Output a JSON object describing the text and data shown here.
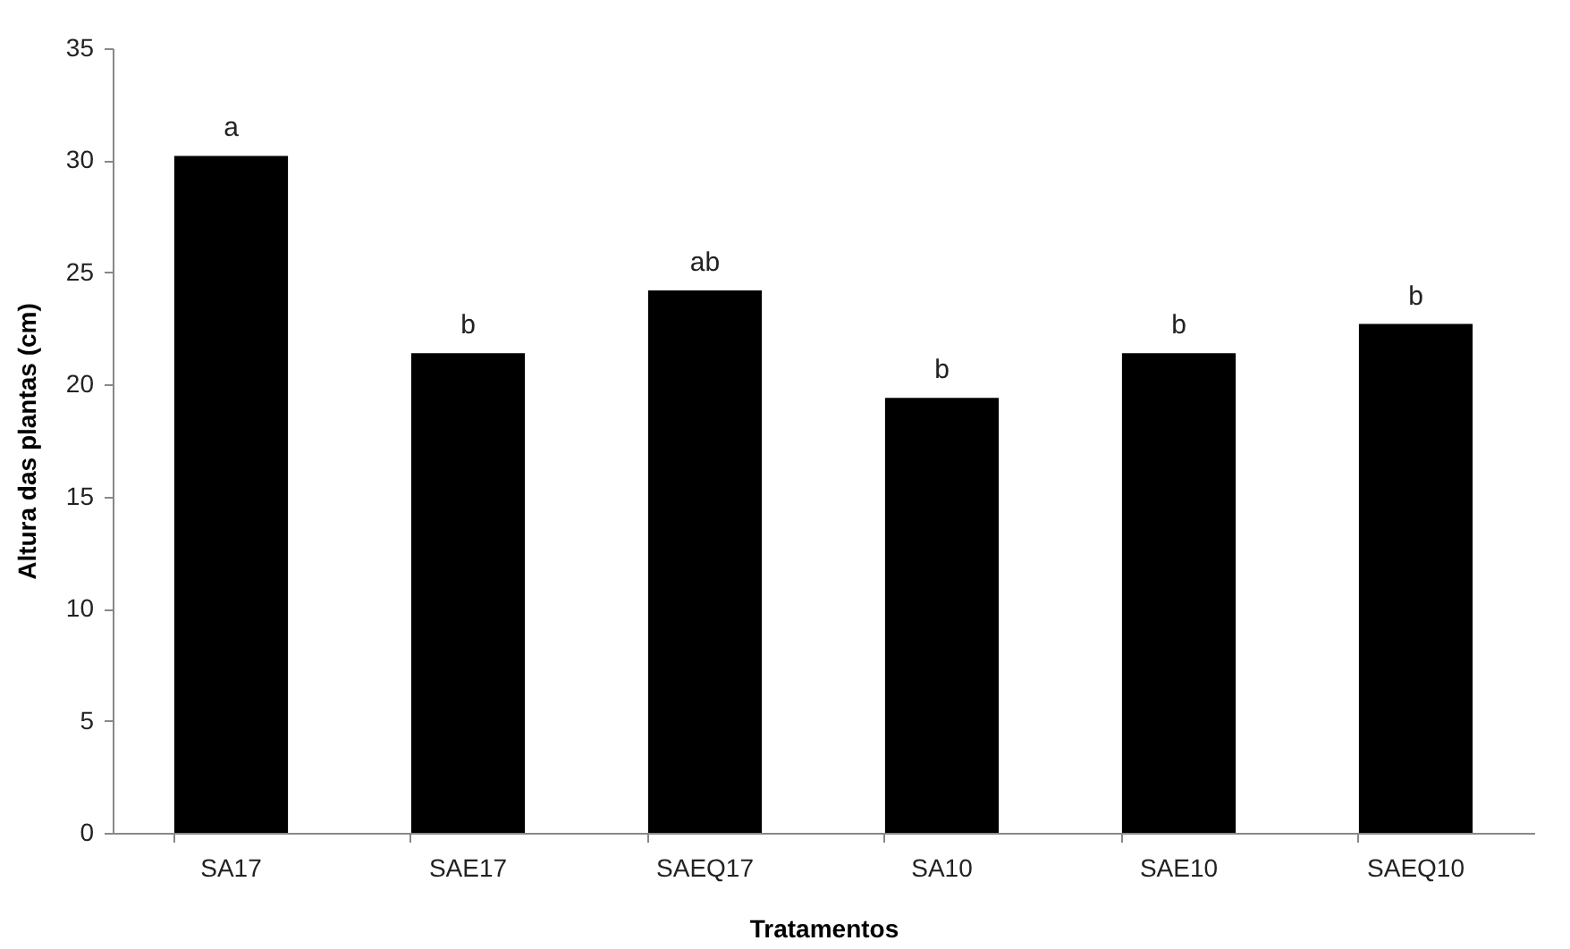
{
  "chart_data": {
    "type": "bar",
    "xlabel": "Tratamentos",
    "ylabel": "Altura das plantas (cm)",
    "categories": [
      "SA17",
      "SAE17",
      "SAEQ17",
      "SA10",
      "SAE10",
      "SAEQ10"
    ],
    "values": [
      30.2,
      21.4,
      24.2,
      19.4,
      21.4,
      22.7
    ],
    "color": "#000000",
    "ylim": [
      0,
      35
    ],
    "yticks": [
      0,
      5,
      10,
      15,
      20,
      25,
      30,
      35
    ],
    "grid": false,
    "annotations": [
      {
        "text": "a",
        "x": "SA17",
        "y": 30.2
      },
      {
        "text": "b",
        "x": "SAE17",
        "y": 21.4
      },
      {
        "text": "ab",
        "x": "SAEQ17",
        "y": 24.2
      },
      {
        "text": "b",
        "x": "SA10",
        "y": 19.4
      },
      {
        "text": "b",
        "x": "SAE10",
        "y": 21.4
      },
      {
        "text": "b",
        "x": "SAEQ10",
        "y": 22.7
      }
    ]
  }
}
